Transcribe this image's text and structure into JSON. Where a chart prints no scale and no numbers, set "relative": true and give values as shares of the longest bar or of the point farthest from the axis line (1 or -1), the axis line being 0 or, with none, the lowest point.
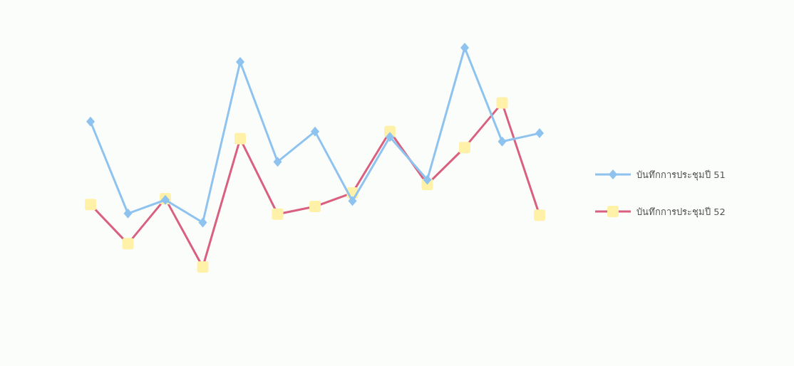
{
  "chart_data": {
    "type": "line",
    "relative": true,
    "categories": [
      null,
      null,
      null,
      null,
      null,
      null,
      null,
      null,
      null,
      null,
      null,
      null,
      null
    ],
    "legend": "right",
    "series": [
      {
        "name": "บันทึกการประชุมปี 51",
        "color": "#8fc3ef",
        "marker": "diamond",
        "values": [
          0.663,
          0.244,
          0.306,
          0.203,
          0.935,
          0.48,
          0.618,
          0.301,
          0.593,
          0.398,
          1,
          0.572,
          0.61
        ]
      },
      {
        "name": "บันทึกการประชุมปี 52",
        "color": "#d9607f",
        "marker": "square",
        "values": [
          0.285,
          0.106,
          0.312,
          0,
          0.585,
          0.241,
          0.276,
          0.338,
          0.618,
          0.377,
          0.545,
          0.748,
          0.236
        ]
      }
    ]
  }
}
